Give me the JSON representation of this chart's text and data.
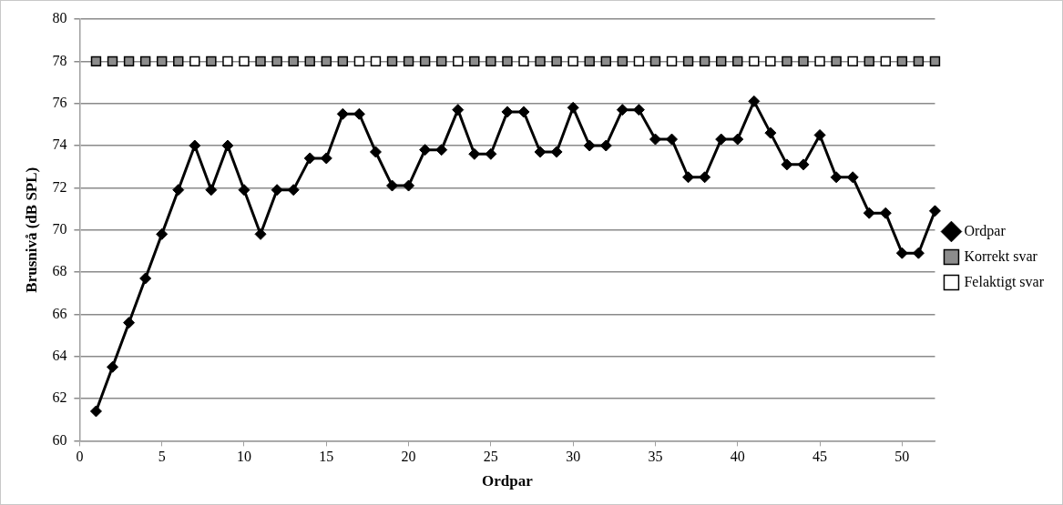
{
  "chart_data": {
    "type": "line",
    "xlabel": "Ordpar",
    "ylabel": "Brusnivå (dB SPL)",
    "x": [
      1,
      2,
      3,
      4,
      5,
      6,
      7,
      8,
      9,
      10,
      11,
      12,
      13,
      14,
      15,
      16,
      17,
      18,
      19,
      20,
      21,
      22,
      23,
      24,
      25,
      26,
      27,
      28,
      29,
      30,
      31,
      32,
      33,
      34,
      35,
      36,
      37,
      38,
      39,
      40,
      41,
      42,
      43,
      44,
      45,
      46,
      47,
      48,
      49,
      50,
      51,
      52
    ],
    "series": [
      {
        "name": "Ordpar",
        "type": "line",
        "color": "#000000",
        "marker": "diamond",
        "values": [
          61.4,
          63.5,
          65.6,
          67.7,
          69.8,
          71.9,
          74.0,
          71.9,
          74.0,
          71.9,
          69.8,
          71.9,
          71.9,
          73.4,
          73.4,
          75.5,
          75.5,
          73.7,
          72.1,
          72.1,
          73.8,
          73.8,
          75.7,
          73.6,
          73.6,
          75.6,
          75.6,
          73.7,
          73.7,
          75.8,
          74.0,
          74.0,
          75.7,
          75.7,
          74.3,
          74.3,
          72.5,
          72.5,
          74.3,
          74.3,
          76.1,
          74.6,
          73.1,
          73.1,
          74.5,
          72.5,
          72.5,
          70.8,
          70.8,
          68.9,
          68.9,
          70.9
        ]
      },
      {
        "name": "Korrekt svar",
        "type": "scatter",
        "color": "#8c8c8c",
        "marker": "square",
        "values": [
          78,
          78,
          78,
          78,
          78,
          78,
          null,
          78,
          null,
          null,
          78,
          78,
          78,
          78,
          78,
          78,
          null,
          null,
          78,
          78,
          78,
          78,
          null,
          78,
          78,
          78,
          null,
          78,
          78,
          null,
          78,
          78,
          78,
          null,
          78,
          null,
          78,
          78,
          78,
          78,
          null,
          null,
          78,
          78,
          null,
          78,
          null,
          78,
          null,
          78,
          78,
          78
        ]
      },
      {
        "name": "Felaktigt svar",
        "type": "scatter",
        "color": "#ffffff",
        "marker": "square",
        "values": [
          null,
          null,
          null,
          null,
          null,
          null,
          78,
          null,
          78,
          78,
          null,
          null,
          null,
          null,
          null,
          null,
          78,
          78,
          null,
          null,
          null,
          null,
          78,
          null,
          null,
          null,
          78,
          null,
          null,
          78,
          null,
          null,
          null,
          78,
          null,
          78,
          null,
          null,
          null,
          null,
          78,
          78,
          null,
          null,
          78,
          null,
          78,
          null,
          78,
          null,
          null,
          null
        ]
      }
    ],
    "xlim": [
      0,
      52
    ],
    "xticks": [
      0,
      5,
      10,
      15,
      20,
      25,
      30,
      35,
      40,
      45,
      50
    ],
    "ylim": [
      60,
      80
    ],
    "yticks": [
      60,
      62,
      64,
      66,
      68,
      70,
      72,
      74,
      76,
      78,
      80
    ],
    "grid": "y",
    "legend": "right"
  }
}
